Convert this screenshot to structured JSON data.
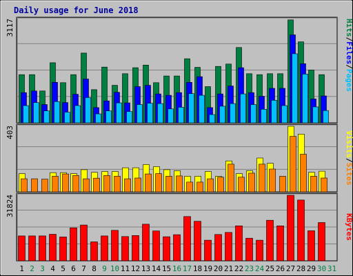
{
  "title": "Daily usage for June 2018",
  "colors": {
    "background": "#c0c0c0",
    "panel_face": "#c0c0c0",
    "title_text": "#0000a0",
    "hits": "#008040",
    "files": "#0000ff",
    "pages": "#00c0ff",
    "visits": "#ffff00",
    "sites": "#ff8000",
    "kbytes": "#ff0000",
    "weekend_day": "#008040",
    "weekday": "#000000",
    "grid": "#808080",
    "bar_outline": "#000000"
  },
  "right_labels": {
    "top": [
      {
        "text": "Hits",
        "color": "#008040"
      },
      {
        "text": "/",
        "color": "#000000"
      },
      {
        "text": "Files",
        "color": "#0000ff"
      },
      {
        "text": "/",
        "color": "#000000"
      },
      {
        "text": "Pages",
        "color": "#00c0ff"
      }
    ],
    "middle": [
      {
        "text": "Visits",
        "color": "#ffff00"
      },
      {
        "text": "/",
        "color": "#000000"
      },
      {
        "text": "Sites",
        "color": "#ff8000"
      }
    ],
    "bottom": [
      {
        "text": "KBytes",
        "color": "#ff0000"
      }
    ]
  },
  "chart_data": {
    "type": "bar",
    "title": "Daily usage for June 2018",
    "categories": [
      "1",
      "2",
      "3",
      "4",
      "5",
      "6",
      "7",
      "8",
      "9",
      "10",
      "11",
      "12",
      "13",
      "14",
      "15",
      "16",
      "17",
      "18",
      "19",
      "20",
      "21",
      "22",
      "23",
      "24",
      "25",
      "26",
      "27",
      "28",
      "29",
      "30",
      "31"
    ],
    "weekend_days": [
      2,
      3,
      9,
      10,
      16,
      17,
      23,
      24,
      30,
      31
    ],
    "panels": [
      {
        "id": "hits-files-pages",
        "ymax": 3117,
        "ymax_label": "3117",
        "grid_lines": 3,
        "series": [
          {
            "name": "Hits",
            "color": "#008040",
            "values": [
              1450,
              1450,
              960,
              1810,
              1210,
              1450,
              2100,
              1000,
              1680,
              1130,
              1480,
              1660,
              1740,
              1210,
              1410,
              1410,
              1930,
              1670,
              1090,
              1700,
              1770,
              2270,
              1480,
              1450,
              1480,
              1480,
              3100,
              2440,
              1590,
              1450,
              0
            ]
          },
          {
            "name": "Files",
            "color": "#0000ff",
            "values": [
              910,
              960,
              550,
              1220,
              610,
              860,
              1320,
              460,
              660,
              920,
              600,
              1090,
              1130,
              870,
              830,
              910,
              1220,
              1390,
              460,
              870,
              1110,
              1660,
              910,
              800,
              1040,
              1040,
              2650,
              1780,
              720,
              810,
              0
            ]
          },
          {
            "name": "Pages",
            "color": "#00c0ff",
            "values": [
              520,
              610,
              360,
              640,
              320,
              520,
              760,
              270,
              360,
              600,
              340,
              550,
              590,
              580,
              420,
              470,
              880,
              830,
              250,
              500,
              580,
              870,
              550,
              410,
              680,
              520,
              2080,
              1470,
              480,
              370,
              0
            ]
          }
        ]
      },
      {
        "id": "visits-sites",
        "ymax": 403,
        "ymax_label": "403",
        "grid_lines": 2,
        "series": [
          {
            "name": "Visits",
            "color": "#ffff00",
            "values": [
              112,
              0,
              0,
              118,
              118,
              112,
              136,
              120,
              125,
              125,
              148,
              148,
              168,
              155,
              136,
              130,
              96,
              96,
              125,
              96,
              190,
              112,
              130,
              208,
              175,
              0,
              403,
              355,
              120,
              127,
              0
            ]
          },
          {
            "name": "Sites",
            "color": "#ff8000",
            "values": [
              80,
              80,
              78,
              96,
              110,
              100,
              80,
              84,
              100,
              96,
              80,
              85,
              110,
              112,
              96,
              98,
              60,
              60,
              80,
              90,
              170,
              90,
              115,
              170,
              140,
              96,
              341,
              231,
              96,
              85,
              0
            ]
          }
        ]
      },
      {
        "id": "kbytes",
        "ymax": 31824,
        "ymax_label": "31824",
        "grid_lines": 3,
        "series": [
          {
            "name": "KBytes",
            "color": "#ff0000",
            "values": [
              12100,
              12100,
              12100,
              12900,
              11600,
              16000,
              17400,
              9200,
              12100,
              14800,
              11800,
              12300,
              17800,
              14500,
              11700,
              12700,
              21500,
              19200,
              10000,
              12800,
              13800,
              17000,
              11000,
              10000,
              19700,
              17000,
              31824,
              29500,
              14600,
              18600,
              0
            ]
          }
        ]
      }
    ]
  }
}
